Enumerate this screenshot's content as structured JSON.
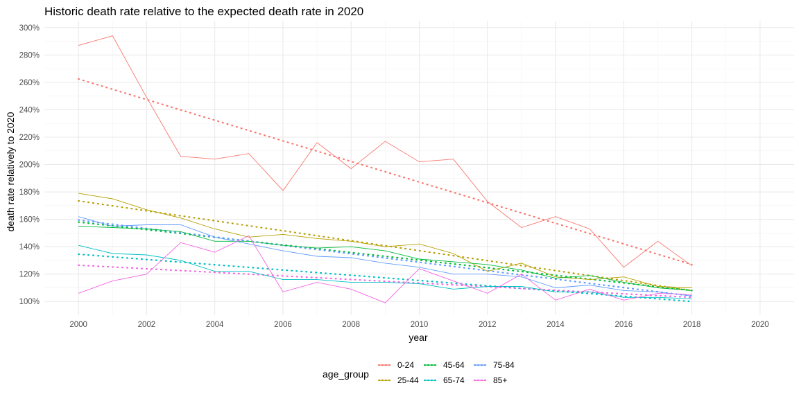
{
  "chart_data": {
    "type": "line",
    "title": "Historic death rate relative to the expected death rate in 2020",
    "xlabel": "year",
    "ylabel": "death rate relatively to 2020",
    "xlim": [
      1999,
      2021
    ],
    "ylim": [
      90,
      305
    ],
    "x_ticks": [
      2000,
      2002,
      2004,
      2006,
      2008,
      2010,
      2012,
      2014,
      2016,
      2018,
      2020
    ],
    "y_ticks": [
      100,
      120,
      140,
      160,
      180,
      200,
      220,
      240,
      260,
      280,
      300
    ],
    "y_tick_labels": [
      "100%",
      "120%",
      "140%",
      "160%",
      "180%",
      "200%",
      "220%",
      "240%",
      "260%",
      "280%",
      "300%"
    ],
    "grid": true,
    "legend_title": "age_group",
    "legend_position": "bottom",
    "x": [
      2000,
      2001,
      2002,
      2003,
      2004,
      2005,
      2006,
      2007,
      2008,
      2009,
      2010,
      2011,
      2012,
      2013,
      2014,
      2015,
      2016,
      2017,
      2018
    ],
    "series": [
      {
        "name": "0-24",
        "color": "#F8766D",
        "values": [
          287,
          294,
          249,
          206,
          204,
          208,
          181,
          216,
          197,
          217,
          202,
          204,
          173,
          154,
          162,
          153,
          125,
          144,
          126
        ],
        "trend": [
          262.5,
          127
        ]
      },
      {
        "name": "25-44",
        "color": "#B79F00",
        "values": [
          179,
          175,
          167,
          161,
          153,
          147,
          149,
          146,
          144,
          140,
          142,
          135,
          122,
          128,
          118,
          116,
          118,
          111,
          110
        ],
        "trend": [
          173.5,
          108
        ]
      },
      {
        "name": "45-64",
        "color": "#00BA38",
        "values": [
          155,
          154,
          153,
          151,
          144,
          144,
          141,
          139,
          140,
          137,
          131,
          129,
          127,
          123,
          117,
          119,
          114,
          110,
          108
        ],
        "trend": [
          158,
          108
        ]
      },
      {
        "name": "65-74",
        "color": "#00BFC4",
        "values": [
          141,
          135,
          134,
          130,
          122,
          122,
          116,
          116,
          114,
          114,
          113,
          109,
          111,
          111,
          107,
          107,
          103,
          103,
          102
        ],
        "trend": [
          134.5,
          100
        ]
      },
      {
        "name": "75-84",
        "color": "#619CFF",
        "values": [
          162,
          155,
          156,
          156,
          147,
          142,
          137,
          133,
          132,
          128,
          125,
          120,
          120,
          118,
          110,
          112,
          108,
          107,
          104
        ],
        "trend": [
          159.5,
          104
        ]
      },
      {
        "name": "85+",
        "color": "#F564E3",
        "values": [
          106,
          115,
          120,
          143,
          136,
          148,
          107,
          114,
          109,
          99,
          124,
          115,
          106,
          120,
          101,
          109,
          101,
          106,
          105
        ],
        "trend": [
          126.5,
          103
        ]
      }
    ]
  }
}
